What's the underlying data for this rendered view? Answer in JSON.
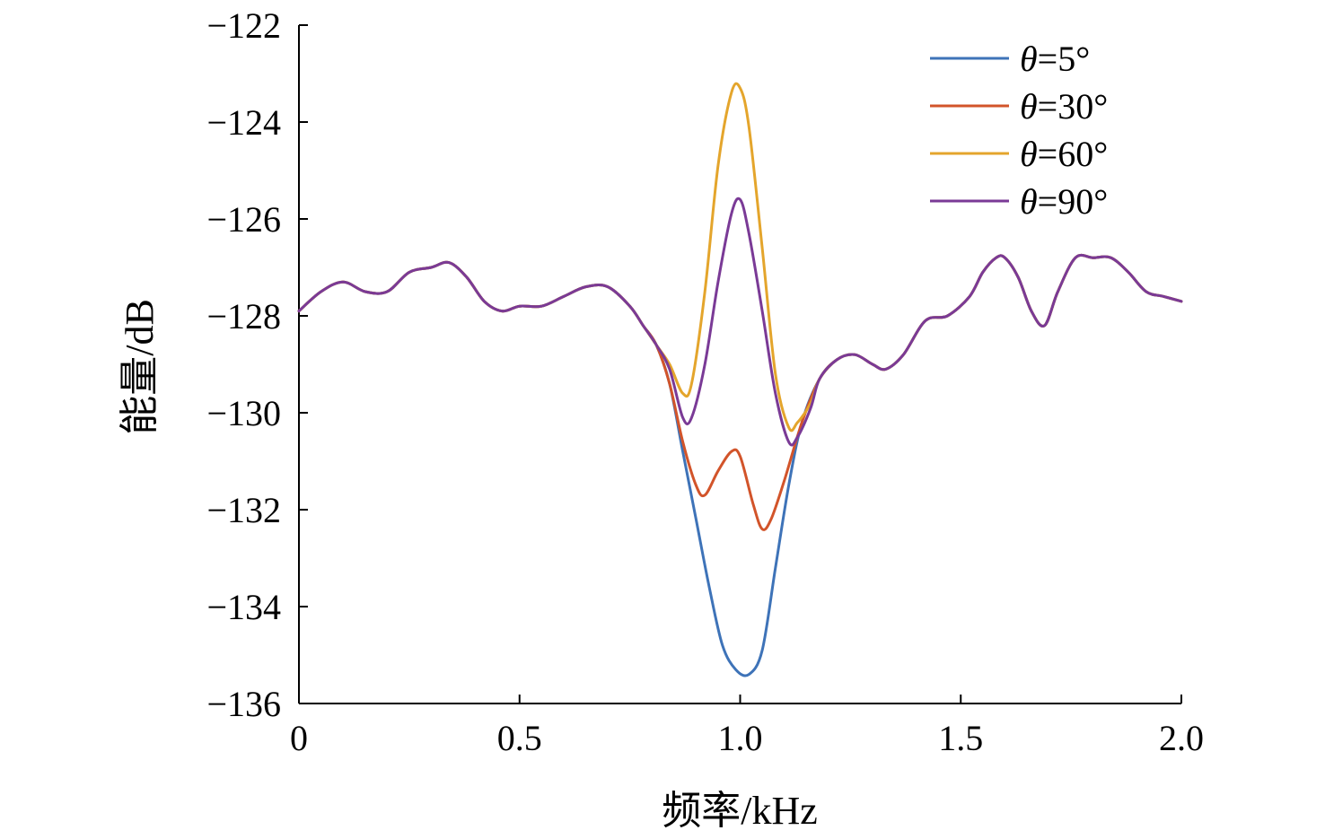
{
  "chart_data": {
    "type": "line",
    "xlabel": "频率/kHz",
    "ylabel": "能量/dB",
    "xlim": [
      0,
      2.0
    ],
    "ylim": [
      -136,
      -122
    ],
    "x_ticks": [
      0,
      0.5,
      1.0,
      1.5,
      2.0
    ],
    "x_tick_labels": [
      "0",
      "0.5",
      "1.0",
      "1.5",
      "2.0"
    ],
    "y_ticks": [
      -122,
      -124,
      -126,
      -128,
      -130,
      -132,
      -134,
      -136
    ],
    "y_tick_labels": [
      "−122",
      "−124",
      "−126",
      "−128",
      "−130",
      "−132",
      "−134",
      "−136"
    ],
    "grid": false,
    "legend_position": "top-right",
    "base_curve": {
      "x": [
        0,
        0.05,
        0.1,
        0.15,
        0.2,
        0.25,
        0.3,
        0.34,
        0.38,
        0.42,
        0.46,
        0.5,
        0.55,
        0.6,
        0.65,
        0.7,
        0.75,
        0.78,
        0.81
      ],
      "y": [
        -127.9,
        -127.5,
        -127.3,
        -127.5,
        -127.5,
        -127.1,
        -127.0,
        -126.9,
        -127.2,
        -127.7,
        -127.9,
        -127.8,
        -127.8,
        -127.6,
        -127.4,
        -127.4,
        -127.8,
        -128.2,
        -128.6
      ]
    },
    "series": [
      {
        "name": "θ=5°",
        "color": "#3E73B8",
        "x": [
          0.84,
          0.87,
          0.9,
          0.93,
          0.96,
          0.99,
          1.02,
          1.05,
          1.08,
          1.11,
          1.14
        ],
        "y": [
          -129.4,
          -130.8,
          -132.2,
          -133.6,
          -134.8,
          -135.3,
          -135.4,
          -134.9,
          -133.2,
          -131.5,
          -130.2
        ]
      },
      {
        "name": "θ=30°",
        "color": "#D2542A",
        "x": [
          0.84,
          0.87,
          0.9,
          0.92,
          0.95,
          0.98,
          1.0,
          1.03,
          1.05,
          1.07,
          1.1,
          1.14
        ],
        "y": [
          -129.4,
          -130.6,
          -131.5,
          -131.7,
          -131.2,
          -130.8,
          -130.9,
          -131.9,
          -132.4,
          -132.2,
          -131.4,
          -130.2
        ]
      },
      {
        "name": "θ=60°",
        "color": "#E4A52C",
        "x": [
          0.84,
          0.87,
          0.89,
          0.92,
          0.95,
          0.98,
          1.0,
          1.02,
          1.05,
          1.08,
          1.11,
          1.13,
          1.16
        ],
        "y": [
          -129.0,
          -129.6,
          -129.4,
          -127.5,
          -124.9,
          -123.4,
          -123.3,
          -124.1,
          -126.6,
          -129.2,
          -130.3,
          -130.2,
          -129.8
        ]
      },
      {
        "name": "θ=90°",
        "color": "#7A3A96",
        "x": [
          0.84,
          0.87,
          0.89,
          0.92,
          0.95,
          0.98,
          1.0,
          1.02,
          1.05,
          1.08,
          1.11,
          1.13,
          1.16
        ],
        "y": [
          -129.1,
          -130.1,
          -130.1,
          -129.0,
          -127.3,
          -125.9,
          -125.6,
          -126.3,
          -127.9,
          -129.6,
          -130.6,
          -130.5,
          -129.9
        ]
      }
    ],
    "tail_curve": {
      "x": [
        1.18,
        1.22,
        1.26,
        1.3,
        1.33,
        1.37,
        1.42,
        1.47,
        1.52,
        1.55,
        1.58,
        1.6,
        1.63,
        1.66,
        1.69,
        1.72,
        1.76,
        1.8,
        1.84,
        1.88,
        1.92,
        1.96,
        2.0
      ],
      "y": [
        -129.3,
        -128.9,
        -128.8,
        -129.0,
        -129.1,
        -128.8,
        -128.1,
        -128.0,
        -127.6,
        -127.1,
        -126.8,
        -126.8,
        -127.2,
        -127.9,
        -128.2,
        -127.5,
        -126.8,
        -126.8,
        -126.8,
        -127.1,
        -127.5,
        -127.6,
        -127.7
      ]
    }
  }
}
